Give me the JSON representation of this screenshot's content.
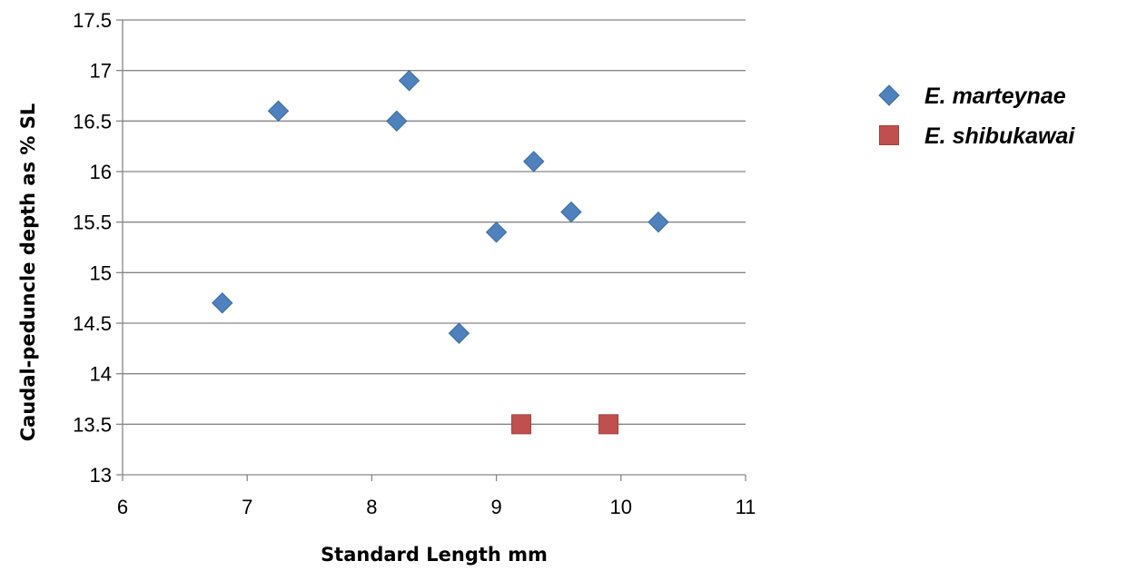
{
  "chart_data": {
    "type": "scatter",
    "title": "",
    "xlabel": "Standard Length mm",
    "ylabel": "Caudal-peduncle depth as % SL",
    "xlim": [
      6,
      11
    ],
    "ylim": [
      13,
      17.5
    ],
    "xticks": [
      6,
      7,
      8,
      9,
      10,
      11
    ],
    "yticks": [
      13,
      13.5,
      14,
      14.5,
      15,
      15.5,
      16,
      16.5,
      17,
      17.5
    ],
    "grid": "horizontal major gridlines",
    "legend_position": "right",
    "series": [
      {
        "name": "E. marteynae",
        "marker": "diamond",
        "color": "#4F81BD",
        "points": [
          {
            "x": 6.8,
            "y": 14.7
          },
          {
            "x": 7.25,
            "y": 16.6
          },
          {
            "x": 8.2,
            "y": 16.5
          },
          {
            "x": 8.3,
            "y": 16.9
          },
          {
            "x": 8.7,
            "y": 14.4
          },
          {
            "x": 9.0,
            "y": 15.4
          },
          {
            "x": 9.3,
            "y": 16.1
          },
          {
            "x": 9.6,
            "y": 15.6
          },
          {
            "x": 10.3,
            "y": 15.5
          }
        ]
      },
      {
        "name": "E. shibukawai",
        "marker": "square",
        "color": "#C0504D",
        "points": [
          {
            "x": 9.2,
            "y": 13.5
          },
          {
            "x": 9.9,
            "y": 13.5
          }
        ]
      }
    ]
  }
}
